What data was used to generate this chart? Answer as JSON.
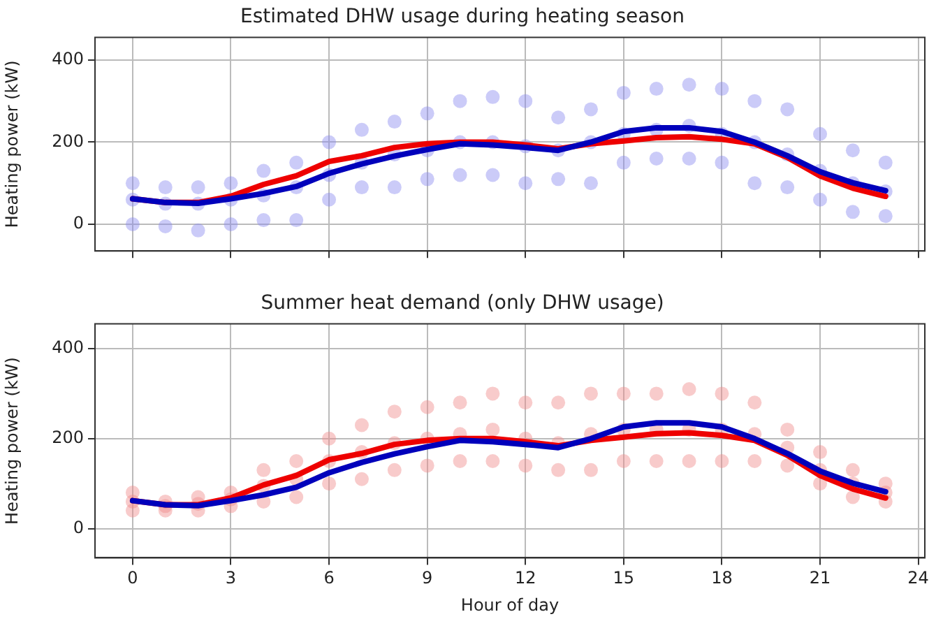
{
  "chart_data": [
    {
      "type": "line",
      "title": "Estimated DHW usage during heating season",
      "ylabel": "Heating power (kW)",
      "xlim": [
        -1.15,
        24.2
      ],
      "xticks": [
        0,
        3,
        6,
        9,
        12,
        15,
        18,
        21,
        24
      ],
      "ylim": [
        -65,
        455
      ],
      "yticks": [
        0,
        200,
        400
      ],
      "grid": true,
      "tick_labels": "y",
      "series": [
        {
          "type": "scatter",
          "marker": "circle",
          "color": "#8c8cf0",
          "x": [
            0,
            0,
            0,
            1,
            1,
            1,
            2,
            2,
            2,
            3,
            3,
            3,
            4,
            4,
            4,
            5,
            5,
            5,
            6,
            6,
            6,
            7,
            7,
            7,
            8,
            8,
            8,
            9,
            9,
            9,
            10,
            10,
            10,
            11,
            11,
            11,
            12,
            12,
            12,
            13,
            13,
            13,
            14,
            14,
            14,
            15,
            15,
            15,
            16,
            16,
            16,
            17,
            17,
            17,
            18,
            18,
            18,
            19,
            19,
            19,
            20,
            20,
            20,
            21,
            21,
            21,
            22,
            22,
            22,
            23,
            23,
            23
          ],
          "values": [
            0,
            60,
            100,
            -5,
            50,
            90,
            -15,
            50,
            90,
            0,
            60,
            100,
            10,
            70,
            130,
            10,
            90,
            150,
            60,
            120,
            200,
            90,
            150,
            230,
            90,
            170,
            250,
            110,
            180,
            270,
            120,
            200,
            300,
            120,
            200,
            310,
            100,
            190,
            300,
            110,
            180,
            260,
            100,
            200,
            280,
            150,
            220,
            320,
            160,
            230,
            330,
            160,
            240,
            340,
            150,
            220,
            330,
            100,
            200,
            300,
            90,
            170,
            280,
            60,
            130,
            220,
            30,
            100,
            180,
            20,
            80,
            150
          ]
        },
        {
          "type": "line",
          "marker": "none",
          "color": "#ee0000",
          "x": [
            0,
            1,
            2,
            3,
            4,
            5,
            6,
            7,
            8,
            9,
            10,
            11,
            12,
            13,
            14,
            15,
            16,
            17,
            18,
            19,
            20,
            21,
            22,
            23
          ],
          "values": [
            62,
            53,
            53,
            68,
            97,
            118,
            153,
            167,
            187,
            196,
            200,
            200,
            193,
            184,
            196,
            203,
            211,
            213,
            207,
            196,
            163,
            118,
            88,
            68
          ]
        },
        {
          "type": "line",
          "marker": "none",
          "color": "#0000bb",
          "x": [
            0,
            1,
            2,
            3,
            4,
            5,
            6,
            7,
            8,
            9,
            10,
            11,
            12,
            13,
            14,
            15,
            16,
            17,
            18,
            19,
            20,
            21,
            22,
            23
          ],
          "values": [
            62,
            53,
            51,
            62,
            75,
            92,
            124,
            147,
            166,
            182,
            196,
            193,
            187,
            180,
            200,
            226,
            235,
            235,
            226,
            200,
            167,
            128,
            101,
            82
          ]
        }
      ]
    },
    {
      "type": "line",
      "title": "Summer heat demand (only DHW usage)",
      "ylabel": "Heating power (kW)",
      "xlabel": "Hour of day",
      "xlim": [
        -1.15,
        24.2
      ],
      "xticks": [
        0,
        3,
        6,
        9,
        12,
        15,
        18,
        21,
        24
      ],
      "ylim": [
        -65,
        455
      ],
      "yticks": [
        0,
        200,
        400
      ],
      "grid": true,
      "series": [
        {
          "type": "scatter",
          "marker": "circle",
          "color": "#f08c8c",
          "x": [
            0,
            0,
            0,
            1,
            1,
            1,
            2,
            2,
            2,
            3,
            3,
            3,
            4,
            4,
            4,
            5,
            5,
            5,
            6,
            6,
            6,
            7,
            7,
            7,
            8,
            8,
            8,
            9,
            9,
            9,
            10,
            10,
            10,
            11,
            11,
            11,
            12,
            12,
            12,
            13,
            13,
            13,
            14,
            14,
            14,
            15,
            15,
            15,
            16,
            16,
            16,
            17,
            17,
            17,
            18,
            18,
            18,
            19,
            19,
            19,
            20,
            20,
            20,
            21,
            21,
            21,
            22,
            22,
            22,
            23,
            23,
            23
          ],
          "values": [
            40,
            60,
            80,
            40,
            50,
            60,
            40,
            55,
            70,
            50,
            65,
            80,
            60,
            95,
            130,
            70,
            110,
            150,
            100,
            150,
            200,
            110,
            170,
            230,
            130,
            190,
            260,
            140,
            200,
            270,
            150,
            210,
            280,
            150,
            220,
            300,
            140,
            200,
            280,
            130,
            190,
            280,
            130,
            210,
            300,
            150,
            220,
            300,
            150,
            220,
            300,
            150,
            220,
            310,
            150,
            220,
            300,
            150,
            210,
            280,
            140,
            180,
            220,
            100,
            130,
            170,
            70,
            100,
            130,
            60,
            80,
            100
          ]
        },
        {
          "type": "line",
          "marker": "none",
          "color": "#ee0000",
          "x": [
            0,
            1,
            2,
            3,
            4,
            5,
            6,
            7,
            8,
            9,
            10,
            11,
            12,
            13,
            14,
            15,
            16,
            17,
            18,
            19,
            20,
            21,
            22,
            23
          ],
          "values": [
            62,
            53,
            53,
            68,
            97,
            118,
            153,
            167,
            187,
            196,
            200,
            200,
            193,
            184,
            196,
            203,
            211,
            213,
            207,
            196,
            163,
            118,
            88,
            68
          ]
        },
        {
          "type": "line",
          "marker": "none",
          "color": "#0000bb",
          "x": [
            0,
            1,
            2,
            3,
            4,
            5,
            6,
            7,
            8,
            9,
            10,
            11,
            12,
            13,
            14,
            15,
            16,
            17,
            18,
            19,
            20,
            21,
            22,
            23
          ],
          "values": [
            62,
            53,
            51,
            62,
            75,
            92,
            124,
            147,
            166,
            182,
            196,
            193,
            187,
            180,
            200,
            226,
            235,
            235,
            226,
            200,
            167,
            128,
            101,
            82
          ]
        }
      ]
    }
  ]
}
